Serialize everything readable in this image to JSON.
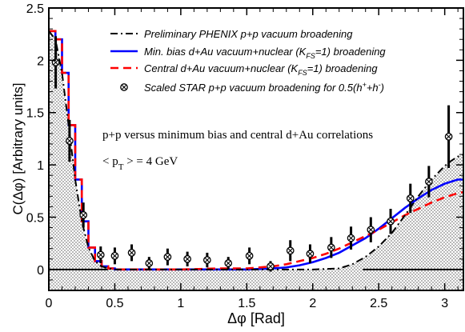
{
  "chart_data": {
    "type": "line",
    "xlabel": "Δφ [Rad]",
    "ylabel": "C(Δφ) [Arbitrary units]",
    "xlim": [
      0,
      3.14159
    ],
    "ylim": [
      -0.2,
      2.5
    ],
    "x_ticks": [
      0,
      0.5,
      1,
      1.5,
      2,
      2.5,
      3
    ],
    "x_tick_labels": [
      "0",
      "0.5",
      "1",
      "1.5",
      "2",
      "2.5",
      "3"
    ],
    "y_ticks": [
      0,
      0.5,
      1,
      1.5,
      2,
      2.5
    ],
    "y_tick_labels": [
      "0",
      "0.5",
      "1",
      "1.5",
      "2",
      "2.5"
    ],
    "grid": false,
    "legend_position": "top-right",
    "annotation_line1": "p+p versus minimum bias and central d+Au correlations",
    "annotation_line2": "< p",
    "annotation_sub": "T",
    "annotation_rest": " > = 4 GeV",
    "series": [
      {
        "name": "Preliminary PHENIX p+p vacuum broadening",
        "color": "#000000",
        "style": "dash-dot",
        "x": [
          0,
          0.05,
          0.1,
          0.15,
          0.2,
          0.25,
          0.3,
          0.35,
          0.4,
          0.45,
          0.5,
          0.6,
          0.8,
          1.0,
          1.5,
          2.0,
          2.2,
          2.3,
          2.4,
          2.5,
          2.6,
          2.7,
          2.8,
          2.9,
          3.0,
          3.05,
          3.1,
          3.1416
        ],
        "y": [
          2.28,
          2.2,
          1.88,
          1.38,
          0.86,
          0.46,
          0.21,
          0.08,
          0.03,
          0.01,
          0.0,
          0.0,
          0.0,
          0.0,
          0.0,
          0.0,
          0.01,
          0.05,
          0.12,
          0.22,
          0.35,
          0.52,
          0.7,
          0.86,
          0.99,
          1.04,
          1.08,
          1.1
        ]
      },
      {
        "name": "Min. bias d+Au vacuum+nuclear (K_FS=1) broadening",
        "color": "#0000ff",
        "style": "solid",
        "x": [
          0,
          0.05,
          0.1,
          0.15,
          0.2,
          0.25,
          0.3,
          0.35,
          0.4,
          0.45,
          0.5,
          0.6,
          0.8,
          1.0,
          1.5,
          1.7,
          1.8,
          1.9,
          2.0,
          2.1,
          2.2,
          2.3,
          2.4,
          2.5,
          2.6,
          2.7,
          2.8,
          2.9,
          3.0,
          3.1,
          3.1416
        ],
        "y": [
          2.28,
          2.2,
          1.88,
          1.38,
          0.86,
          0.46,
          0.21,
          0.08,
          0.03,
          0.01,
          0.0,
          0.0,
          0.0,
          0.0,
          0.0,
          0.01,
          0.02,
          0.04,
          0.07,
          0.11,
          0.16,
          0.23,
          0.3,
          0.39,
          0.49,
          0.59,
          0.68,
          0.76,
          0.82,
          0.86,
          0.86
        ]
      },
      {
        "name": "Central d+Au vacuum+nuclear (K_FS=1) broadening",
        "color": "#ff0000",
        "style": "dashed",
        "x": [
          0,
          0.05,
          0.1,
          0.15,
          0.2,
          0.25,
          0.3,
          0.35,
          0.4,
          0.45,
          0.5,
          0.6,
          0.8,
          1.0,
          1.3,
          1.5,
          1.7,
          1.8,
          1.9,
          2.0,
          2.1,
          2.2,
          2.3,
          2.4,
          2.5,
          2.6,
          2.7,
          2.8,
          2.9,
          3.0,
          3.1,
          3.1416
        ],
        "y": [
          2.28,
          2.2,
          1.88,
          1.38,
          0.86,
          0.46,
          0.21,
          0.08,
          0.03,
          0.01,
          0.0,
          0.0,
          0.0,
          0.0,
          0.01,
          0.01,
          0.03,
          0.05,
          0.08,
          0.11,
          0.15,
          0.2,
          0.26,
          0.32,
          0.38,
          0.45,
          0.52,
          0.58,
          0.64,
          0.69,
          0.73,
          0.74
        ]
      },
      {
        "name": "Scaled STAR p+p vacuum broadening for 0.5(h⁺+h⁻)",
        "color": "#000000",
        "style": "markers",
        "x": [
          0.052,
          0.157,
          0.262,
          0.393,
          0.5,
          0.628,
          0.76,
          0.9,
          1.05,
          1.2,
          1.36,
          1.52,
          1.68,
          1.83,
          1.98,
          2.14,
          2.29,
          2.44,
          2.59,
          2.74,
          2.88,
          3.03
        ],
        "y": [
          1.98,
          1.23,
          0.52,
          0.14,
          0.13,
          0.16,
          0.06,
          0.12,
          0.1,
          0.09,
          0.06,
          0.13,
          0.03,
          0.18,
          0.15,
          0.21,
          0.3,
          0.38,
          0.46,
          0.68,
          0.84,
          1.27
        ],
        "err": [
          0.25,
          0.2,
          0.12,
          0.08,
          0.08,
          0.08,
          0.06,
          0.08,
          0.07,
          0.07,
          0.06,
          0.08,
          0.05,
          0.1,
          0.09,
          0.1,
          0.11,
          0.12,
          0.12,
          0.14,
          0.15,
          0.3
        ]
      }
    ]
  }
}
